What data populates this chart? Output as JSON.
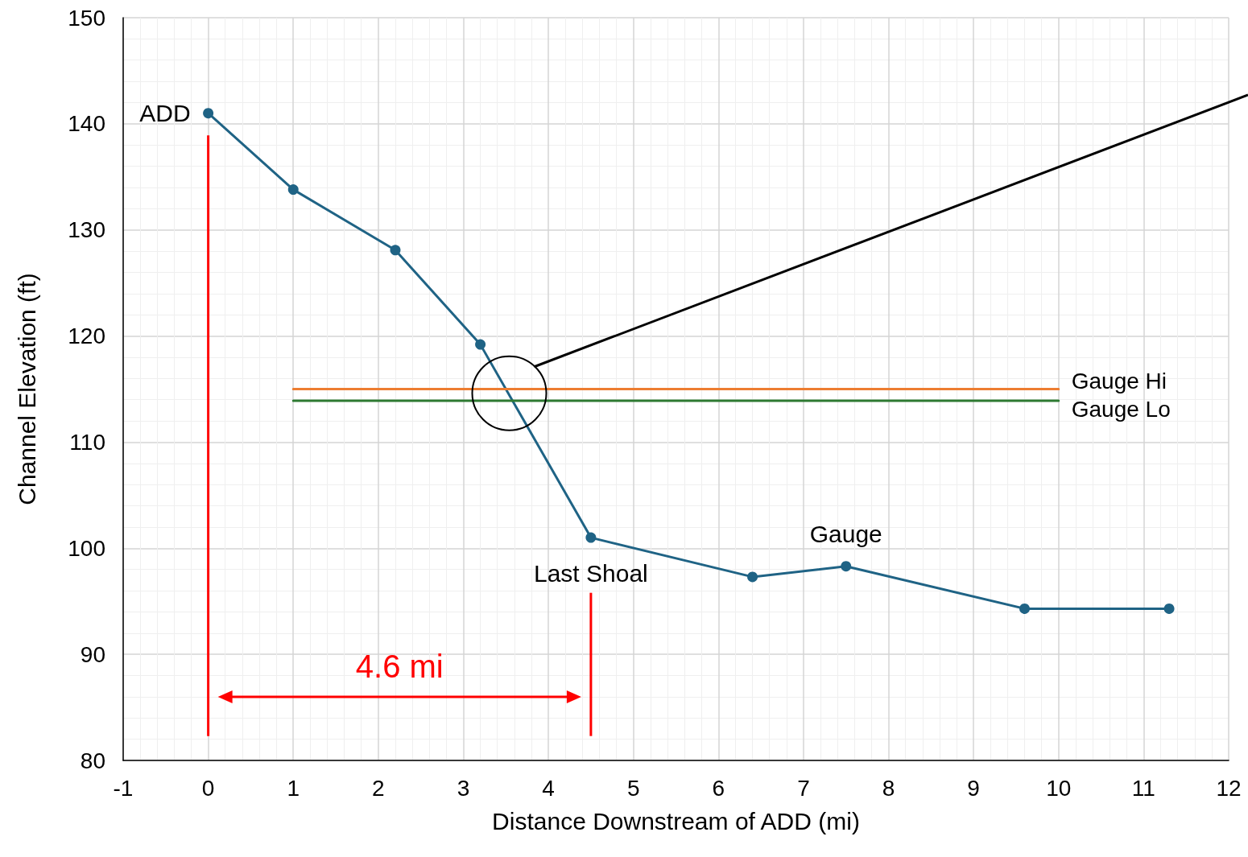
{
  "chart_data": {
    "type": "line",
    "xlabel": "Distance Downstream of ADD (mi)",
    "ylabel": "Channel Elevation (ft)",
    "xlim": [
      -1,
      12
    ],
    "xticks": [
      -1,
      0,
      1,
      2,
      3,
      4,
      5,
      6,
      7,
      8,
      9,
      10,
      11,
      12
    ],
    "ylim": [
      80,
      150
    ],
    "yticks": [
      80,
      90,
      100,
      110,
      120,
      130,
      140,
      150
    ],
    "grid": true,
    "legend": false,
    "marker": "circle",
    "line_style": "solid",
    "series": [
      {
        "color": "#1f6385",
        "x": [
          0,
          1,
          2.2,
          3.2,
          4.5,
          6.4,
          7.5,
          9.6,
          11.3
        ],
        "values": [
          141,
          133.8,
          128.1,
          119.2,
          101,
          97.3,
          98.3,
          94.3,
          94.3
        ]
      },
      {
        "name": "Gauge Hi",
        "color": "#ed7d31",
        "marker": "none",
        "x": [
          1,
          10
        ],
        "values": [
          115,
          115
        ]
      },
      {
        "name": "Gauge Lo",
        "color": "#2e7a32",
        "marker": "none",
        "x": [
          1,
          10
        ],
        "values": [
          113.9,
          113.9
        ]
      }
    ],
    "annotations": [
      {
        "text": "ADD",
        "x": 0,
        "y": 141
      },
      {
        "text": "Last Shoal",
        "x": 4.5,
        "y": 101
      },
      {
        "text": "Gauge",
        "x": 7.5,
        "y": 98.3
      },
      "4.6 mi"
    ]
  }
}
